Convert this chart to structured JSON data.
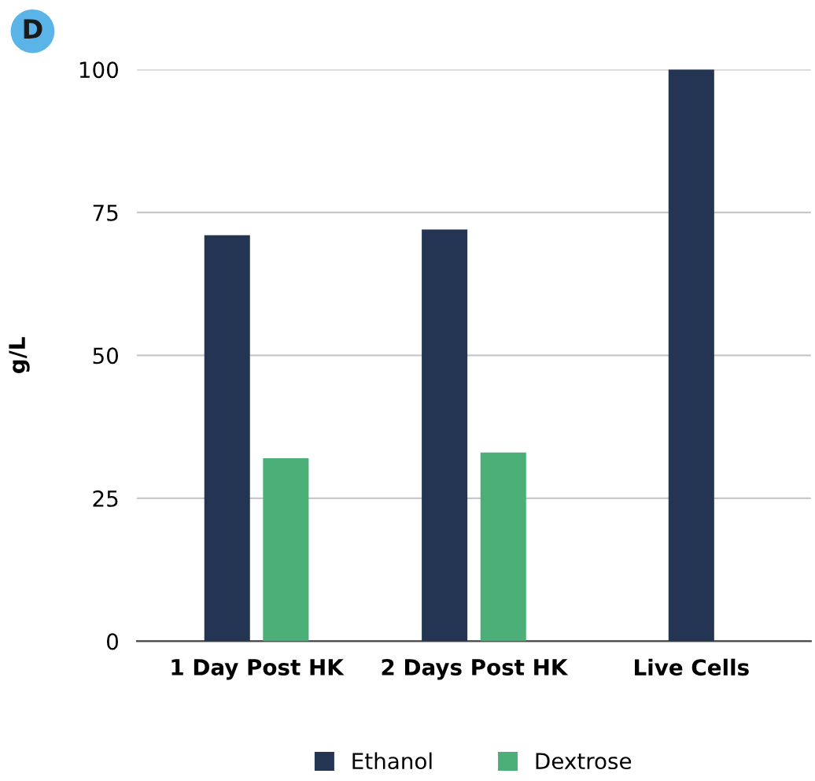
{
  "chart_data": {
    "type": "bar",
    "ylabel": "g/L",
    "categories": [
      "1 Day Post HK",
      "2 Days Post HK",
      "Live Cells"
    ],
    "series": [
      {
        "name": "Ethanol",
        "color": "#243554",
        "values": [
          71,
          72,
          100
        ]
      },
      {
        "name": "Dextrose",
        "color": "#4caf78",
        "values": [
          32,
          33,
          null
        ]
      }
    ],
    "ylim": [
      0,
      100
    ],
    "yticks": [
      0,
      25,
      50,
      75,
      100
    ],
    "grid": "y",
    "legend": "bottom",
    "annotations": [
      "D"
    ]
  }
}
